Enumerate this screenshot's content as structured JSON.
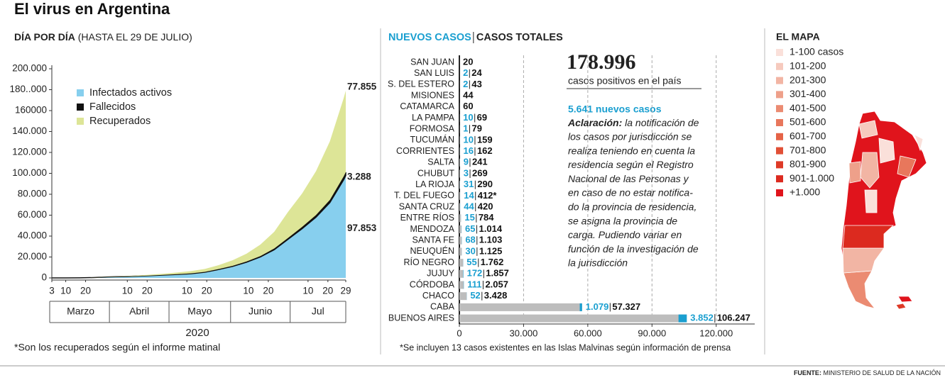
{
  "title": "El virus en Argentina",
  "source_label": "FUENTE:",
  "source": "MINISTERIO DE SALUD DE LA NACIÓN",
  "chart_data": [
    {
      "type": "area",
      "stacked": true,
      "subtitle": "DÍA POR DÍA",
      "subtitle_note": "(HASTA EL 29 DE JULIO)",
      "xlabel": "2020",
      "note": "*Son los recuperados según el informe matinal",
      "legend": "upper left",
      "grid": false,
      "x": [
        "2020-03-03",
        "2020-03-10",
        "2020-03-17",
        "2020-03-24",
        "2020-03-31",
        "2020-04-07",
        "2020-04-14",
        "2020-04-21",
        "2020-04-28",
        "2020-05-05",
        "2020-05-12",
        "2020-05-19",
        "2020-05-26",
        "2020-06-02",
        "2020-06-09",
        "2020-06-16",
        "2020-06-23",
        "2020-06-30",
        "2020-07-07",
        "2020-07-14",
        "2020-07-21",
        "2020-07-28",
        "2020-07-29"
      ],
      "xlim": [
        "2020-03-03",
        "2020-07-29"
      ],
      "xticks": [
        {
          "value": "2020-03-03",
          "label": "3"
        },
        {
          "value": "2020-03-10",
          "label": "10"
        },
        {
          "value": "2020-03-20",
          "label": "20"
        },
        {
          "value": "2020-04-10",
          "label": "10"
        },
        {
          "value": "2020-04-20",
          "label": "20"
        },
        {
          "value": "2020-05-10",
          "label": "10"
        },
        {
          "value": "2020-05-20",
          "label": "20"
        },
        {
          "value": "2020-06-10",
          "label": "10"
        },
        {
          "value": "2020-06-20",
          "label": "20"
        },
        {
          "value": "2020-07-10",
          "label": "10"
        },
        {
          "value": "2020-07-20",
          "label": "20"
        },
        {
          "value": "2020-07-29",
          "label": "29"
        }
      ],
      "months": [
        "Marzo",
        "Abril",
        "Mayo",
        "Junio",
        "Jul"
      ],
      "ylim": [
        0,
        200000
      ],
      "yticks": [
        0,
        {
          "value": 20000,
          "label": "20.000"
        },
        {
          "value": 40000,
          "label": "40.000"
        },
        {
          "value": 60000,
          "label": "60.000"
        },
        {
          "value": 80000,
          "label": "80.000"
        },
        {
          "value": 100000,
          "label": "100.000"
        },
        {
          "value": 120000,
          "label": "120.000"
        },
        {
          "value": 140000,
          "label": "140.000"
        },
        160000,
        {
          "value": 180000,
          "label": "180..000"
        },
        {
          "value": 200000,
          "label": "200.000"
        }
      ],
      "series": [
        {
          "name": "Infectados activos",
          "color": "#87cfee",
          "values": [
            1,
            17,
            70,
            350,
            900,
            1200,
            1600,
            2100,
            2700,
            3300,
            4000,
            5400,
            8000,
            11000,
            15000,
            20000,
            27000,
            37000,
            47000,
            58000,
            72000,
            94000,
            97853
          ],
          "value_labels": [
            null,
            null,
            null,
            null,
            null,
            null,
            null,
            null,
            null,
            null,
            null,
            null,
            null,
            null,
            null,
            null,
            null,
            null,
            null,
            null,
            null,
            null,
            "97.853"
          ]
        },
        {
          "name": "Fallecidos",
          "color": "#111111",
          "values": [
            0,
            1,
            2,
            6,
            27,
            60,
            98,
            147,
            192,
            264,
            315,
            363,
            433,
            528,
            648,
            845,
            1116,
            1307,
            1694,
            2050,
            2588,
            3200,
            3288
          ],
          "value_labels": [
            null,
            null,
            null,
            null,
            null,
            null,
            null,
            null,
            null,
            null,
            null,
            null,
            null,
            null,
            null,
            null,
            null,
            null,
            null,
            null,
            null,
            null,
            "3.288"
          ]
        },
        {
          "name": "Recuperados",
          "color": "#dde597",
          "values": [
            0,
            0,
            0,
            50,
            200,
            300,
            500,
            800,
            1100,
            1600,
            2200,
            2800,
            3800,
            5300,
            7500,
            11000,
            16000,
            25000,
            32000,
            42000,
            56000,
            75000,
            77855
          ],
          "value_labels": [
            null,
            null,
            null,
            null,
            null,
            null,
            null,
            null,
            null,
            null,
            null,
            null,
            null,
            null,
            null,
            null,
            null,
            null,
            null,
            null,
            null,
            null,
            "77.855"
          ]
        }
      ]
    },
    {
      "type": "bar",
      "orientation": "horizontal",
      "note": "*Se incluyen 13 casos existentes en las Islas Malvinas según información de prensa",
      "grid": true,
      "categories": [
        "SAN JUAN",
        "SAN LUIS",
        "S. DEL ESTERO",
        "MISIONES",
        "CATAMARCA",
        "LA PAMPA",
        "FORMOSA",
        "TUCUMÁN",
        "CORRIENTES",
        "SALTA",
        "CHUBUT",
        "LA RIOJA",
        "T. DEL FUEGO",
        "SANTA CRUZ",
        "ENTRE RÍOS",
        "MENDOZA",
        "SANTA FE",
        "NEUQUÉN",
        "RÍO NEGRO",
        "JUJUY",
        "CÓRDOBA",
        "CHACO",
        "CABA",
        "BUENOS AIRES"
      ],
      "xlim": [
        0,
        138000
      ],
      "xticks": [
        0,
        {
          "value": 30000,
          "label": "30.000"
        },
        {
          "value": 60000,
          "label": "60.000"
        },
        {
          "value": 90000,
          "label": "90.000"
        },
        {
          "value": 120000,
          "label": "120.000"
        }
      ],
      "series": [
        {
          "name": "NUEVOS CASOS",
          "color": "#1a9fd0",
          "values": [
            null,
            2,
            2,
            null,
            null,
            10,
            1,
            10,
            16,
            9,
            3,
            31,
            14,
            44,
            15,
            65,
            68,
            30,
            55,
            172,
            111,
            52,
            1079,
            3852
          ],
          "value_labels": [
            null,
            "2",
            "2",
            null,
            null,
            "10",
            "1",
            "10",
            "16",
            "9",
            "3",
            "31",
            "14",
            "44",
            "15",
            "65",
            "68",
            "30",
            "55",
            "172",
            "111",
            "52",
            "1.079",
            "3.852"
          ]
        },
        {
          "name": "CASOS TOTALES",
          "color": "#bdbdbd",
          "values": [
            20,
            24,
            43,
            44,
            60,
            69,
            79,
            159,
            162,
            241,
            269,
            290,
            412,
            420,
            784,
            1014,
            1103,
            1125,
            1762,
            1857,
            2057,
            3428,
            57327,
            106247
          ],
          "value_labels": [
            "20",
            "24",
            "43",
            "44",
            "60",
            "69",
            "79",
            "159",
            "162",
            "241",
            "269",
            "290",
            "412*",
            "420",
            "784",
            "1.014",
            "1.103",
            "1.125",
            "1.762",
            "1.857",
            "2.057",
            "3.428",
            "57.327",
            "106.247"
          ]
        }
      ]
    }
  ],
  "summary": {
    "total": "178.996",
    "total_caption": "casos positivos en el país",
    "new_cases": "5.641 nuevos casos",
    "note_label": "Aclaración:",
    "note_lines": [
      "la notificación de",
      "los casos por jurisdicción se",
      "realiza teniendo en cuenta la",
      "residencia según el Registro",
      "Nacional de las Personas y",
      "en caso de no estar notifica-",
      "do la provincia de residencia,",
      "se asigna la provincia de",
      "carga. Pudiendo variar en",
      "función de la investigación de",
      "la jurisdicción"
    ]
  },
  "map": {
    "title": "EL MAPA",
    "legend": [
      {
        "label": "1-100 casos",
        "color": "#fae0da"
      },
      {
        "label": "101-200",
        "color": "#f6cabe"
      },
      {
        "label": "201-300",
        "color": "#f2b5a4"
      },
      {
        "label": "301-400",
        "color": "#eea08a"
      },
      {
        "label": "401-500",
        "color": "#eb8b72"
      },
      {
        "label": "501-600",
        "color": "#e8775c"
      },
      {
        "label": "601-700",
        "color": "#e56347"
      },
      {
        "label": "701-800",
        "color": "#e14f36"
      },
      {
        "label": "801-900",
        "color": "#de3a27"
      },
      {
        "label": "901-1.000",
        "color": "#dc2a1f"
      },
      {
        "label": "+1.000",
        "color": "#e0141c"
      }
    ]
  }
}
